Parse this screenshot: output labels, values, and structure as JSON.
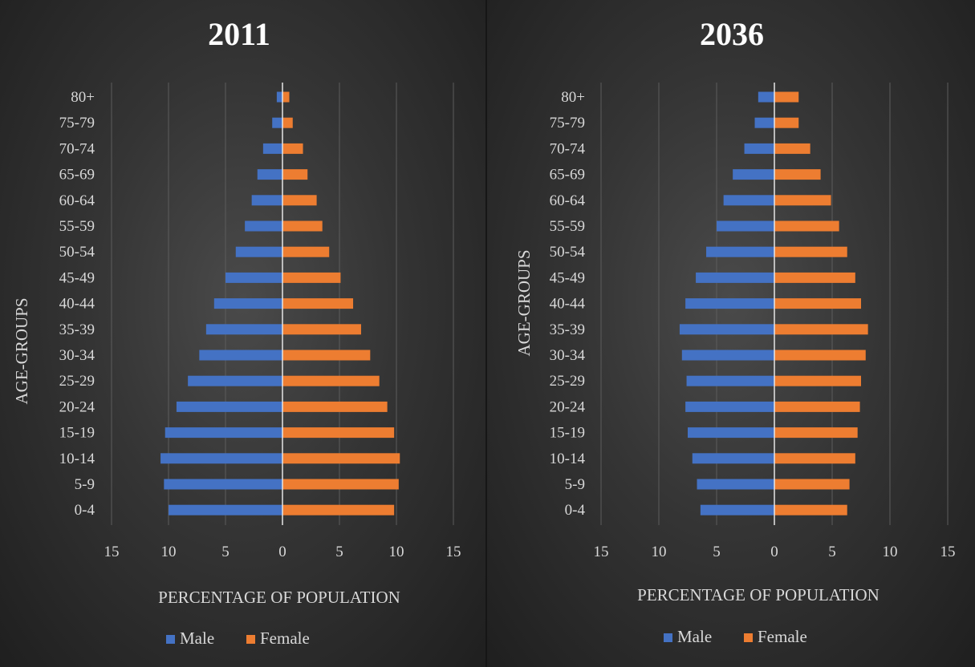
{
  "colors": {
    "male": "#4472C4",
    "female": "#ED7D31"
  },
  "chart_data": [
    {
      "type": "bar",
      "title": "2011",
      "xlabel": "PERCENTAGE OF POPULATION",
      "ylabel": "AGE-GROUPS",
      "xlim": [
        -15,
        15
      ],
      "xticks": [
        -15,
        -10,
        -5,
        0,
        5,
        10,
        15
      ],
      "xtick_labels": [
        "15",
        "10",
        "5",
        "0",
        "5",
        "10",
        "15"
      ],
      "categories": [
        "80+",
        "75-79",
        "70-74",
        "65-69",
        "60-64",
        "55-59",
        "50-54",
        "45-49",
        "40-44",
        "35-39",
        "30-34",
        "25-29",
        "20-24",
        "15-19",
        "10-14",
        "5-9",
        "0-4"
      ],
      "series": [
        {
          "name": "Male",
          "values": [
            0.5,
            0.9,
            1.7,
            2.2,
            2.7,
            3.3,
            4.1,
            5.0,
            6.0,
            6.7,
            7.3,
            8.3,
            9.3,
            10.3,
            10.7,
            10.4,
            10.0
          ]
        },
        {
          "name": "Female",
          "values": [
            0.6,
            0.9,
            1.8,
            2.2,
            3.0,
            3.5,
            4.1,
            5.1,
            6.2,
            6.9,
            7.7,
            8.5,
            9.2,
            9.8,
            10.3,
            10.2,
            9.8
          ]
        }
      ],
      "legend": "bottom-center"
    },
    {
      "type": "bar",
      "title": "2036",
      "xlabel": "PERCENTAGE OF POPULATION",
      "ylabel": "AGE-GROUPS",
      "xlim": [
        -15,
        15
      ],
      "xticks": [
        -15,
        -10,
        -5,
        0,
        5,
        10,
        15
      ],
      "xtick_labels": [
        "15",
        "10",
        "5",
        "0",
        "5",
        "10",
        "15"
      ],
      "categories": [
        "80+",
        "75-79",
        "70-74",
        "65-69",
        "60-64",
        "55-59",
        "50-54",
        "45-49",
        "40-44",
        "35-39",
        "30-34",
        "25-29",
        "20-24",
        "15-19",
        "10-14",
        "5-9",
        "0-4"
      ],
      "series": [
        {
          "name": "Male",
          "values": [
            1.4,
            1.7,
            2.6,
            3.6,
            4.4,
            5.0,
            5.9,
            6.8,
            7.7,
            8.2,
            8.0,
            7.6,
            7.7,
            7.5,
            7.1,
            6.7,
            6.4
          ]
        },
        {
          "name": "Female",
          "values": [
            2.1,
            2.1,
            3.1,
            4.0,
            4.9,
            5.6,
            6.3,
            7.0,
            7.5,
            8.1,
            7.9,
            7.5,
            7.4,
            7.2,
            7.0,
            6.5,
            6.3
          ]
        }
      ],
      "legend": "bottom-center"
    }
  ]
}
